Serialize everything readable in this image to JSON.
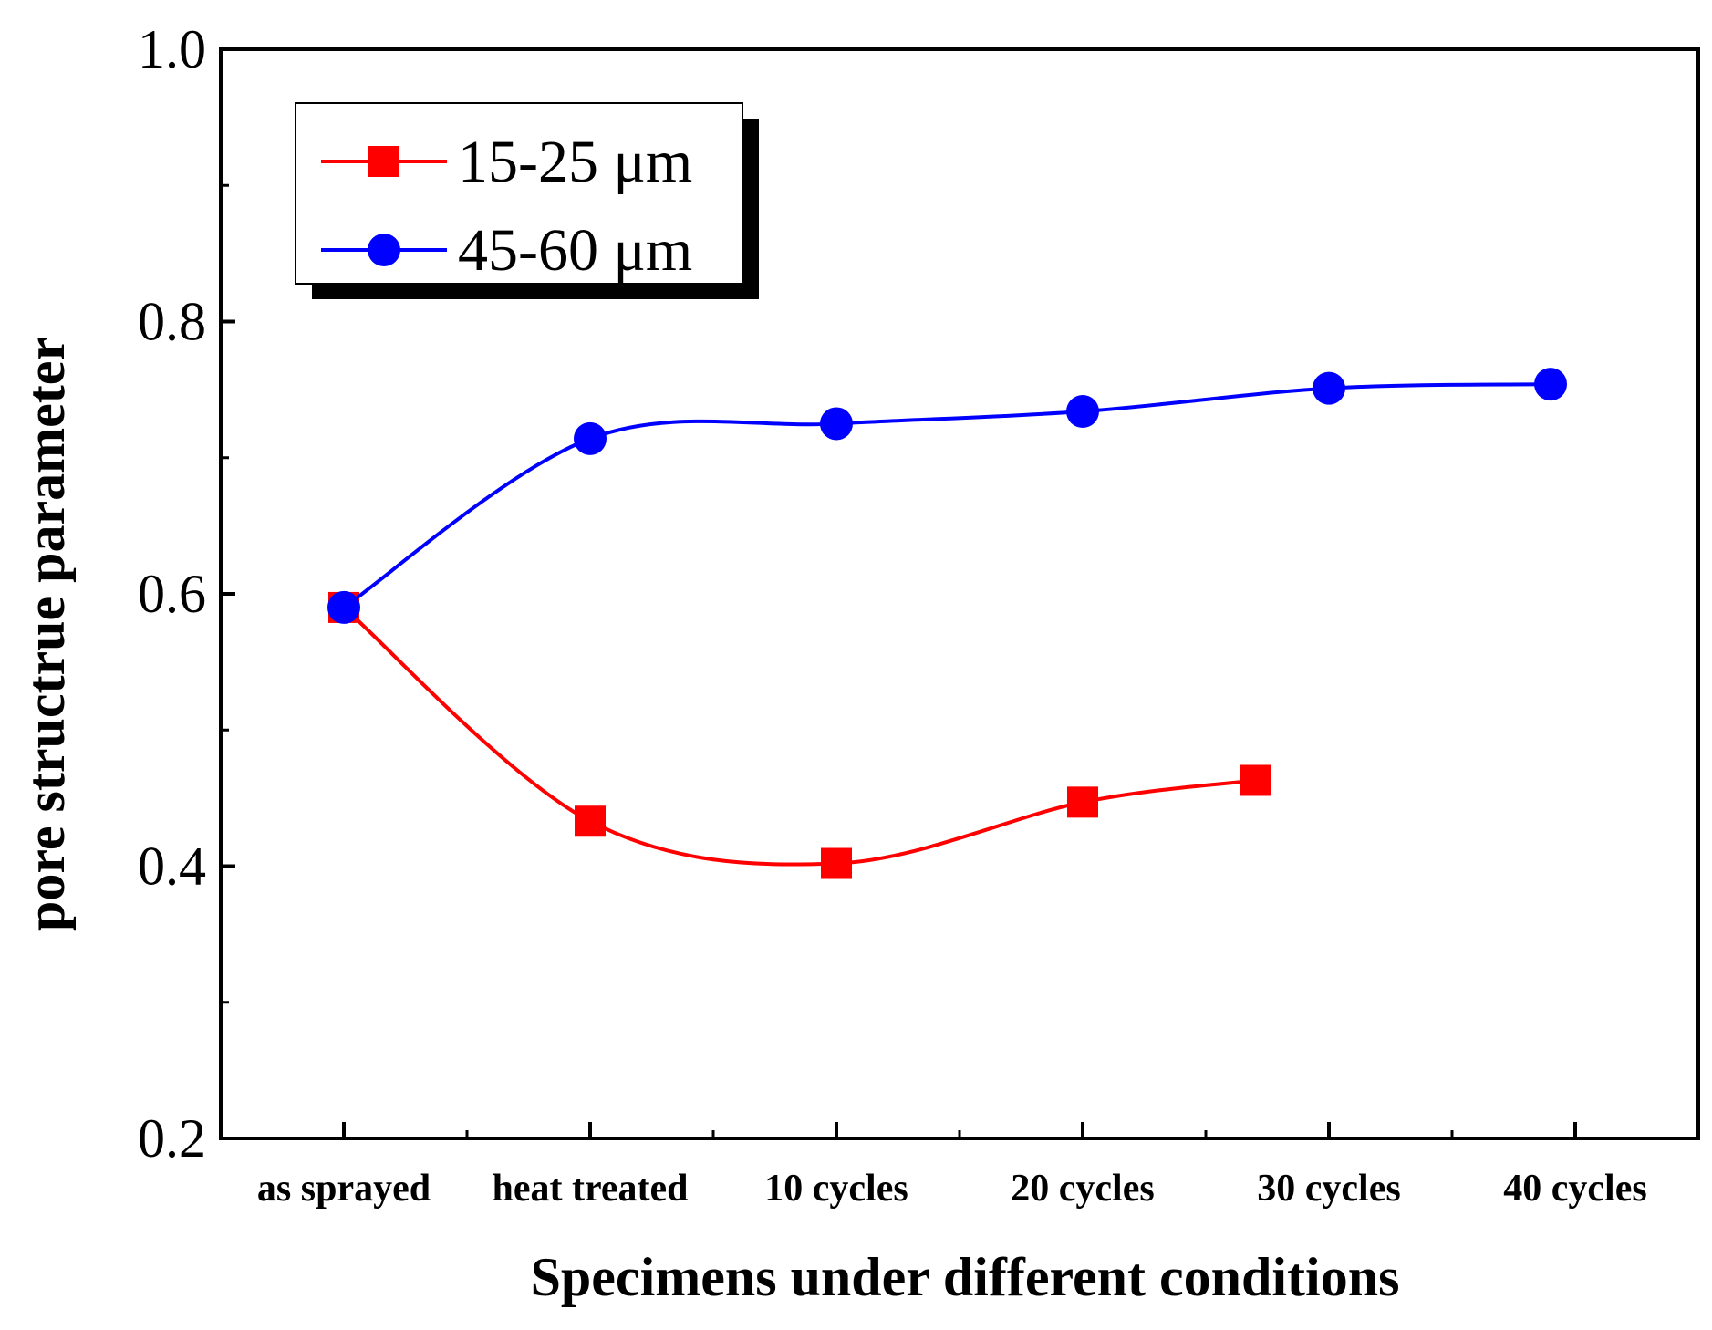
{
  "chart_data": {
    "type": "line",
    "title": "",
    "xlabel": "Specimens under different conditions",
    "ylabel": "pore structrue parameter",
    "categories": [
      "as sprayed",
      "heat treated",
      "10 cycles",
      "20 cycles",
      "30 cycles",
      "40 cycles"
    ],
    "ylim": [
      0.2,
      1.0
    ],
    "yticks": [
      "0.2",
      "0.4",
      "0.6",
      "0.8",
      "1.0"
    ],
    "grid": false,
    "legend_position": "top-left",
    "series": [
      {
        "name": "15-25 μm",
        "color": "#ff0000",
        "marker": "square",
        "x": [
          0,
          1,
          2,
          3,
          3.7
        ],
        "values": [
          0.59,
          0.433,
          0.402,
          0.447,
          0.463
        ]
      },
      {
        "name": "45-60 μm",
        "color": "#0000ff",
        "marker": "circle",
        "x": [
          0,
          1,
          2,
          3,
          4,
          4.9
        ],
        "values": [
          0.59,
          0.714,
          0.725,
          0.734,
          0.751,
          0.754
        ]
      }
    ]
  }
}
